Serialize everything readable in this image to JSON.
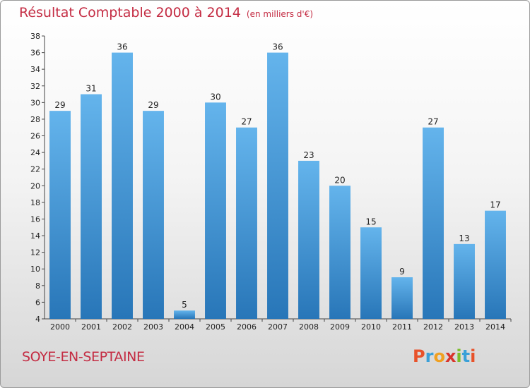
{
  "header": {
    "title": "Résultat Comptable 2000 à 2014",
    "subtitle": "(en milliers d'€)"
  },
  "footer": {
    "place": "SOYE-EN-SEPTAINE",
    "logo_letters": [
      "P",
      "r",
      "o",
      "x",
      "i",
      "t",
      "i"
    ],
    "logo_colors": [
      "#e8522a",
      "#3aa0d8",
      "#f0a020",
      "#d9342b",
      "#7bbd2a",
      "#3aa0d8",
      "#e8522a"
    ]
  },
  "colors": {
    "title": "#c42c43",
    "bar_top": "#64b4ec",
    "bar_bottom": "#2876b8"
  },
  "chart_data": {
    "type": "bar",
    "categories": [
      "2000",
      "2001",
      "2002",
      "2003",
      "2004",
      "2005",
      "2006",
      "2007",
      "2008",
      "2009",
      "2010",
      "2011",
      "2012",
      "2013",
      "2014"
    ],
    "values": [
      29,
      31,
      36,
      29,
      5,
      30,
      27,
      36,
      23,
      20,
      15,
      9,
      27,
      13,
      17
    ],
    "ylim": [
      4,
      38
    ],
    "yticks": [
      4,
      6,
      8,
      10,
      12,
      14,
      16,
      18,
      20,
      22,
      24,
      26,
      28,
      30,
      32,
      34,
      36,
      38
    ],
    "grid": false
  }
}
